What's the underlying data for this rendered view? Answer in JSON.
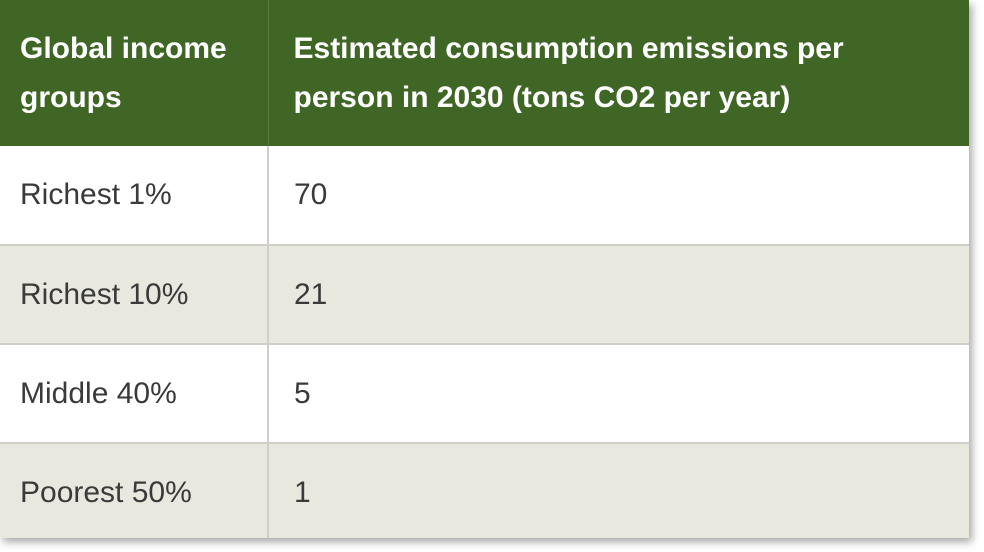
{
  "chart_data": {
    "type": "table",
    "columns": [
      "Global income groups",
      "Estimated consumption emissions per person in 2030 (tons CO2 per year)"
    ],
    "rows": [
      {
        "group": "Richest 1%",
        "value": "70"
      },
      {
        "group": "Richest 10%",
        "value": "21"
      },
      {
        "group": "Middle 40%",
        "value": "5"
      },
      {
        "group": "Poorest 50%",
        "value": "1"
      }
    ]
  },
  "colors": {
    "header_bg": "#3f6625",
    "header_text": "#ffffff",
    "row_alt_bg": "#e9e8df",
    "border": "#cfcfc8"
  }
}
